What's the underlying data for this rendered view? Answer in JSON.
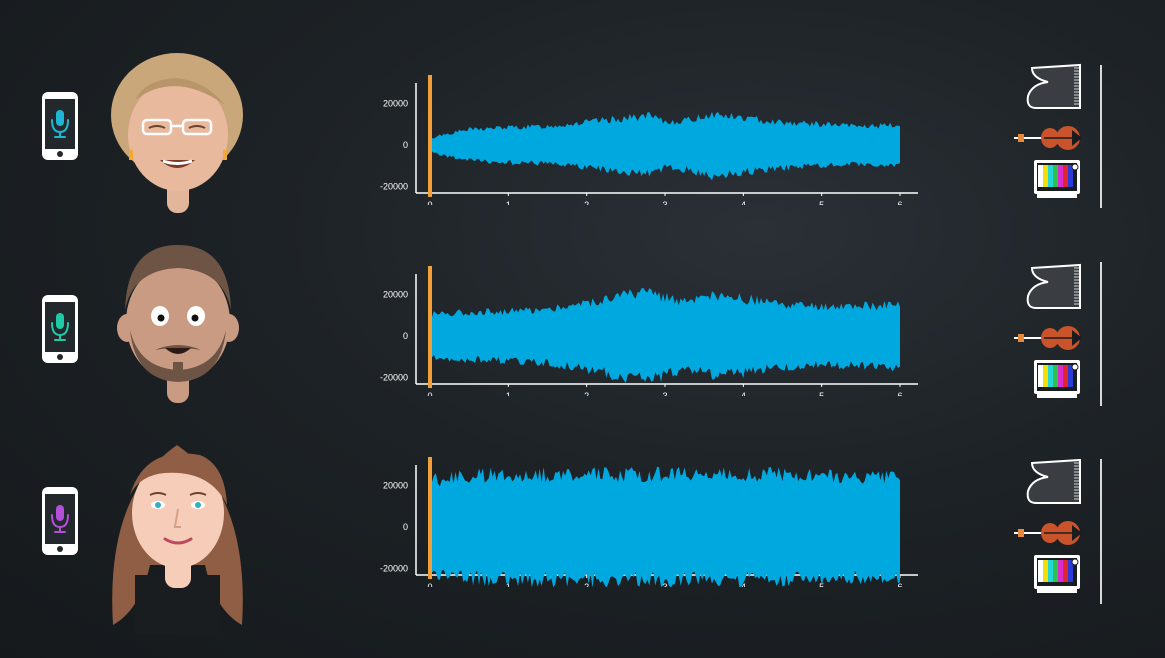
{
  "chart_data": [
    {
      "type": "area",
      "x_ticks": [
        "0",
        "1",
        "2",
        "3",
        "4",
        "5",
        "6"
      ],
      "y_ticks": [
        "20000",
        "0",
        "-20000"
      ],
      "xlim": [
        0,
        6
      ],
      "ylim": [
        -30000,
        30000
      ],
      "envelope_x": [
        0,
        0.1,
        0.5,
        1,
        1.5,
        2,
        2.5,
        2.8,
        3,
        3.3,
        3.6,
        4,
        4.5,
        5,
        5.5,
        6
      ],
      "envelope_y": [
        2500,
        4500,
        7500,
        8500,
        9000,
        11000,
        13000,
        14000,
        11000,
        12000,
        15000,
        13000,
        11000,
        10000,
        9000,
        9500
      ],
      "color": "#00a8e0",
      "marker_x": 0,
      "marker_color": "#f29f3a"
    },
    {
      "type": "area",
      "x_ticks": [
        "0",
        "1",
        "2",
        "3",
        "4",
        "5",
        "6"
      ],
      "y_ticks": [
        "20000",
        "0",
        "-20000"
      ],
      "xlim": [
        0,
        6
      ],
      "ylim": [
        -30000,
        30000
      ],
      "envelope_x": [
        0,
        0.1,
        0.5,
        1,
        1.5,
        2,
        2.5,
        2.8,
        3,
        3.3,
        3.6,
        4,
        4.5,
        5,
        5.5,
        6
      ],
      "envelope_y": [
        10500,
        11000,
        11500,
        12000,
        13000,
        16000,
        20000,
        21000,
        19000,
        16000,
        19000,
        18000,
        15000,
        14000,
        14500,
        15000
      ],
      "color": "#00a8e0",
      "marker_x": 0,
      "marker_color": "#f29f3a"
    },
    {
      "type": "area",
      "x_ticks": [
        "0",
        "1",
        "2",
        "3",
        "4",
        "5",
        "6"
      ],
      "y_ticks": [
        "20000",
        "0",
        "-20000"
      ],
      "xlim": [
        0,
        6
      ],
      "ylim": [
        -30000,
        30000
      ],
      "envelope_x": [
        0,
        0.1,
        0.5,
        1,
        1.5,
        2,
        2.5,
        2.8,
        3,
        3.3,
        3.6,
        4,
        4.5,
        5,
        5.5,
        6
      ],
      "envelope_y": [
        24000,
        23000,
        24500,
        25500,
        25500,
        25500,
        25500,
        25500,
        25500,
        25500,
        25500,
        25500,
        25500,
        25000,
        24500,
        25000
      ],
      "color": "#00a8e0",
      "marker_x": 0,
      "marker_color": "#f29f3a"
    }
  ],
  "icons": {
    "phone": "phone-microphone-icon",
    "avatars": [
      "woman-glasses-avatar",
      "bearded-man-avatar",
      "long-hair-woman-avatar"
    ],
    "instruments": [
      "grand-piano-icon",
      "violin-icon",
      "tv-static-icon"
    ]
  },
  "mic_colors": [
    "#1fb6d3",
    "#1fc9a6",
    "#b34fd8"
  ]
}
